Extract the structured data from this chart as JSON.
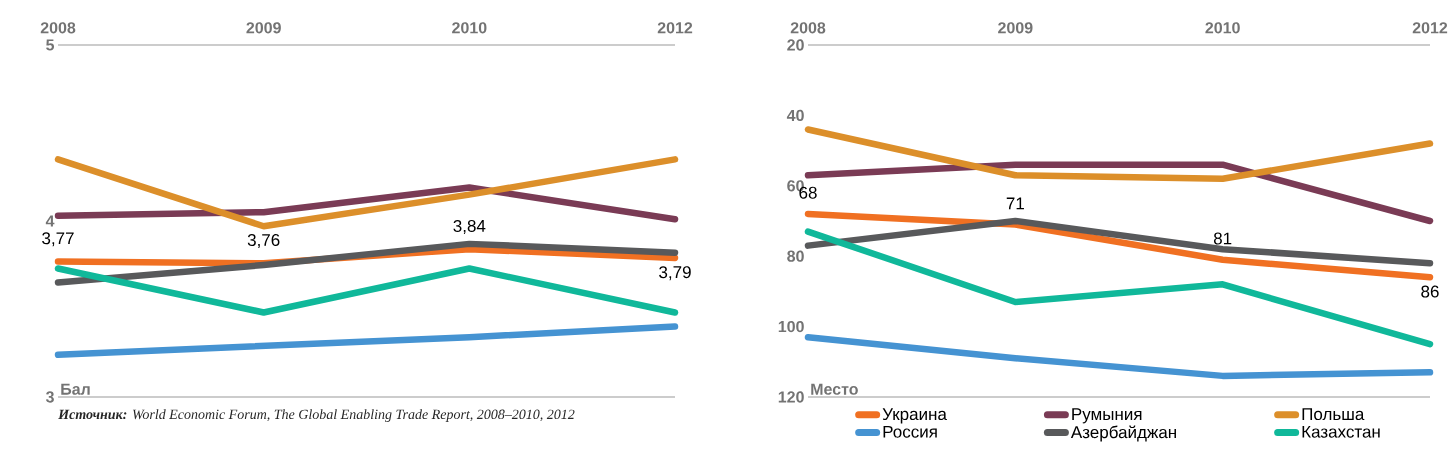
{
  "chart_data": [
    {
      "type": "line",
      "categories": [
        "2008",
        "2009",
        "2010",
        "2012"
      ],
      "ylabel": "Бал",
      "ylim": [
        3,
        5
      ],
      "yticks": [
        3,
        4,
        5
      ],
      "line_style": "solid",
      "marker": "none",
      "grid": false,
      "legend": false,
      "series": [
        {
          "color": "#f07022",
          "values": [
            3.77,
            3.76,
            3.84,
            3.79
          ],
          "value_labels": [
            "3,77",
            "3,76",
            "3,84",
            "3,79"
          ]
        },
        {
          "color": "#7a3b55",
          "values": [
            4.03,
            4.05,
            4.19,
            4.01
          ]
        },
        {
          "color": "#dc8f2a",
          "values": [
            4.35,
            3.97,
            4.15,
            4.35
          ]
        },
        {
          "color": "#4593d2",
          "values": [
            3.24,
            3.29,
            3.34,
            3.4
          ]
        },
        {
          "color": "#58595b",
          "values": [
            3.65,
            3.75,
            3.87,
            3.82
          ]
        },
        {
          "color": "#10b89a",
          "values": [
            3.73,
            3.48,
            3.73,
            3.48
          ]
        }
      ],
      "annotations": [
        "**Источник:** World Economic Forum, The Global Enabling Trade Report, 2008–2010, 2012"
      ]
    },
    {
      "type": "line",
      "categories": [
        "2008",
        "2009",
        "2010",
        "2012"
      ],
      "ylabel": "Место",
      "ylim": [
        120,
        20
      ],
      "yticks": [
        20,
        40,
        60,
        80,
        100,
        120
      ],
      "line_style": "solid",
      "marker": "none",
      "grid": false,
      "legend": "bottom",
      "series": [
        {
          "name": "Украина",
          "color": "#f07022",
          "values": [
            68,
            71,
            81,
            86
          ],
          "value_labels": [
            "68",
            "71",
            "81",
            "86"
          ]
        },
        {
          "name": "Румыния",
          "color": "#7a3b55",
          "values": [
            57,
            54,
            54,
            70
          ]
        },
        {
          "name": "Польша",
          "color": "#dc8f2a",
          "values": [
            44,
            57,
            58,
            48
          ]
        },
        {
          "name": "Россия",
          "color": "#4593d2",
          "values": [
            103,
            109,
            114,
            113
          ]
        },
        {
          "name": "Азербайджан",
          "color": "#58595b",
          "values": [
            77,
            70,
            78,
            82
          ]
        },
        {
          "name": "Казахстан",
          "color": "#10b89a",
          "values": [
            73,
            93,
            88,
            105
          ]
        }
      ]
    }
  ]
}
